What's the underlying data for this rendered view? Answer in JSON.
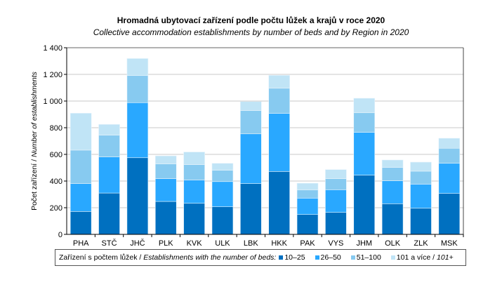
{
  "chart_data": {
    "type": "bar",
    "stacked": true,
    "title": "Hromadná ubytovací zařízení podle počtu lůžek a krajů v roce 2020",
    "subtitle": "Collective accommodation establishments by number of beds and by Region in 2020",
    "ylabel_cs": "Počet zařízení",
    "ylabel_en": "Number of establishments",
    "ylim": [
      0,
      1400
    ],
    "yticks": [
      "0",
      "200",
      "400",
      "600",
      "800",
      "1 000",
      "1 200",
      "1 400"
    ],
    "yticks_values": [
      0,
      200,
      400,
      600,
      800,
      1000,
      1200,
      1400
    ],
    "grid": true,
    "categories": [
      "PHA",
      "STČ",
      "JHČ",
      "PLK",
      "KVK",
      "ULK",
      "LBK",
      "HKK",
      "PAK",
      "VYS",
      "JHM",
      "OLK",
      "ZLK",
      "MSK"
    ],
    "series": [
      {
        "name": "10–25",
        "color": "#0070C0",
        "values": [
          172,
          310,
          575,
          247,
          233,
          207,
          381,
          472,
          149,
          165,
          444,
          230,
          196,
          307
        ]
      },
      {
        "name": "26–50",
        "color": "#29A8FF",
        "values": [
          209,
          271,
          413,
          171,
          174,
          189,
          373,
          435,
          123,
          170,
          321,
          172,
          181,
          226
        ]
      },
      {
        "name": "51–100",
        "color": "#87CAF0",
        "values": [
          251,
          163,
          203,
          110,
          116,
          85,
          174,
          189,
          61,
          83,
          147,
          100,
          97,
          113
        ]
      },
      {
        "name": "101 a více / 101+",
        "color": "#C0E4F6",
        "values": [
          277,
          81,
          128,
          61,
          95,
          52,
          68,
          97,
          51,
          68,
          109,
          56,
          68,
          75
        ]
      }
    ],
    "legend": {
      "position": "bottom",
      "prefix_cs": "Zařízení s počtem lůžek",
      "prefix_en": "Establishments with the number of beds:",
      "labels": [
        "10–25",
        "26–50",
        "51–100",
        "101 a více"
      ],
      "last_en": "101+",
      "sep": "/"
    }
  }
}
